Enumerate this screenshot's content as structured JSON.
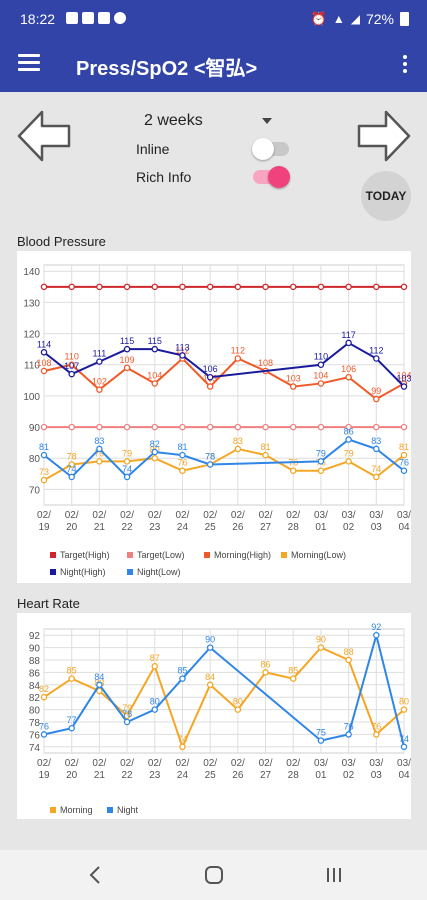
{
  "status": {
    "time": "18:22",
    "battery": "72%"
  },
  "appbar": {
    "title": "Press/SpO2 <智弘>"
  },
  "controls": {
    "period": "2 weeks",
    "inline_label": "Inline",
    "inline_on": false,
    "richinfo_label": "Rich Info",
    "richinfo_on": true,
    "today_label": "TODAY"
  },
  "bp": {
    "section_title": "Blood Pressure",
    "chart_data": {
      "type": "line",
      "categories": [
        "02/19",
        "02/20",
        "02/21",
        "02/22",
        "02/23",
        "02/24",
        "02/25",
        "02/26",
        "02/27",
        "02/28",
        "03/01",
        "03/02",
        "03/03",
        "03/04"
      ],
      "ylim": [
        65,
        142
      ],
      "yticks": [
        70,
        80,
        90,
        100,
        110,
        120,
        130,
        140
      ],
      "series": [
        {
          "name": "Target(High)",
          "color": "#d0262b",
          "values": [
            135,
            135,
            135,
            135,
            135,
            135,
            135,
            135,
            135,
            135,
            135,
            135,
            135,
            135
          ],
          "labels": false
        },
        {
          "name": "Target(Low)",
          "color": "#f08080",
          "values": [
            90,
            90,
            90,
            90,
            90,
            90,
            90,
            90,
            90,
            90,
            90,
            90,
            90,
            90
          ],
          "labels": false
        },
        {
          "name": "Morning(High)",
          "color": "#f05a28",
          "values": [
            108,
            110,
            102,
            109,
            104,
            112,
            103,
            112,
            108,
            103,
            104,
            106,
            99,
            104
          ],
          "labels": true
        },
        {
          "name": "Morning(Low)",
          "color": "#f5a623",
          "values": [
            73,
            78,
            79,
            79,
            80,
            76,
            78,
            83,
            81,
            76,
            76,
            79,
            74,
            81
          ],
          "labels": true
        },
        {
          "name": "Night(High)",
          "color": "#1a1a9e",
          "values": [
            114,
            107,
            111,
            115,
            115,
            113,
            106,
            null,
            null,
            null,
            110,
            117,
            112,
            103
          ],
          "labels": true
        },
        {
          "name": "Night(Low)",
          "color": "#2f86e6",
          "values": [
            81,
            74,
            83,
            74,
            82,
            81,
            78,
            null,
            null,
            null,
            79,
            86,
            83,
            76
          ],
          "labels": true
        }
      ]
    }
  },
  "hr": {
    "section_title": "Heart Rate",
    "chart_data": {
      "type": "line",
      "categories": [
        "02/19",
        "02/20",
        "02/21",
        "02/22",
        "02/23",
        "02/24",
        "02/25",
        "02/26",
        "02/27",
        "02/28",
        "03/01",
        "03/02",
        "03/03",
        "03/04"
      ],
      "ylim": [
        73,
        93
      ],
      "yticks": [
        74,
        76,
        78,
        80,
        82,
        84,
        86,
        88,
        90,
        92
      ],
      "series": [
        {
          "name": "Morning",
          "color": "#f5a623",
          "values": [
            82,
            85,
            83,
            79,
            87,
            74,
            84,
            80,
            86,
            85,
            90,
            88,
            76,
            80
          ],
          "labels": true
        },
        {
          "name": "Night",
          "color": "#2f86e6",
          "values": [
            76,
            77,
            84,
            78,
            80,
            85,
            90,
            null,
            null,
            null,
            75,
            76,
            92,
            74
          ],
          "labels": true
        }
      ]
    }
  }
}
